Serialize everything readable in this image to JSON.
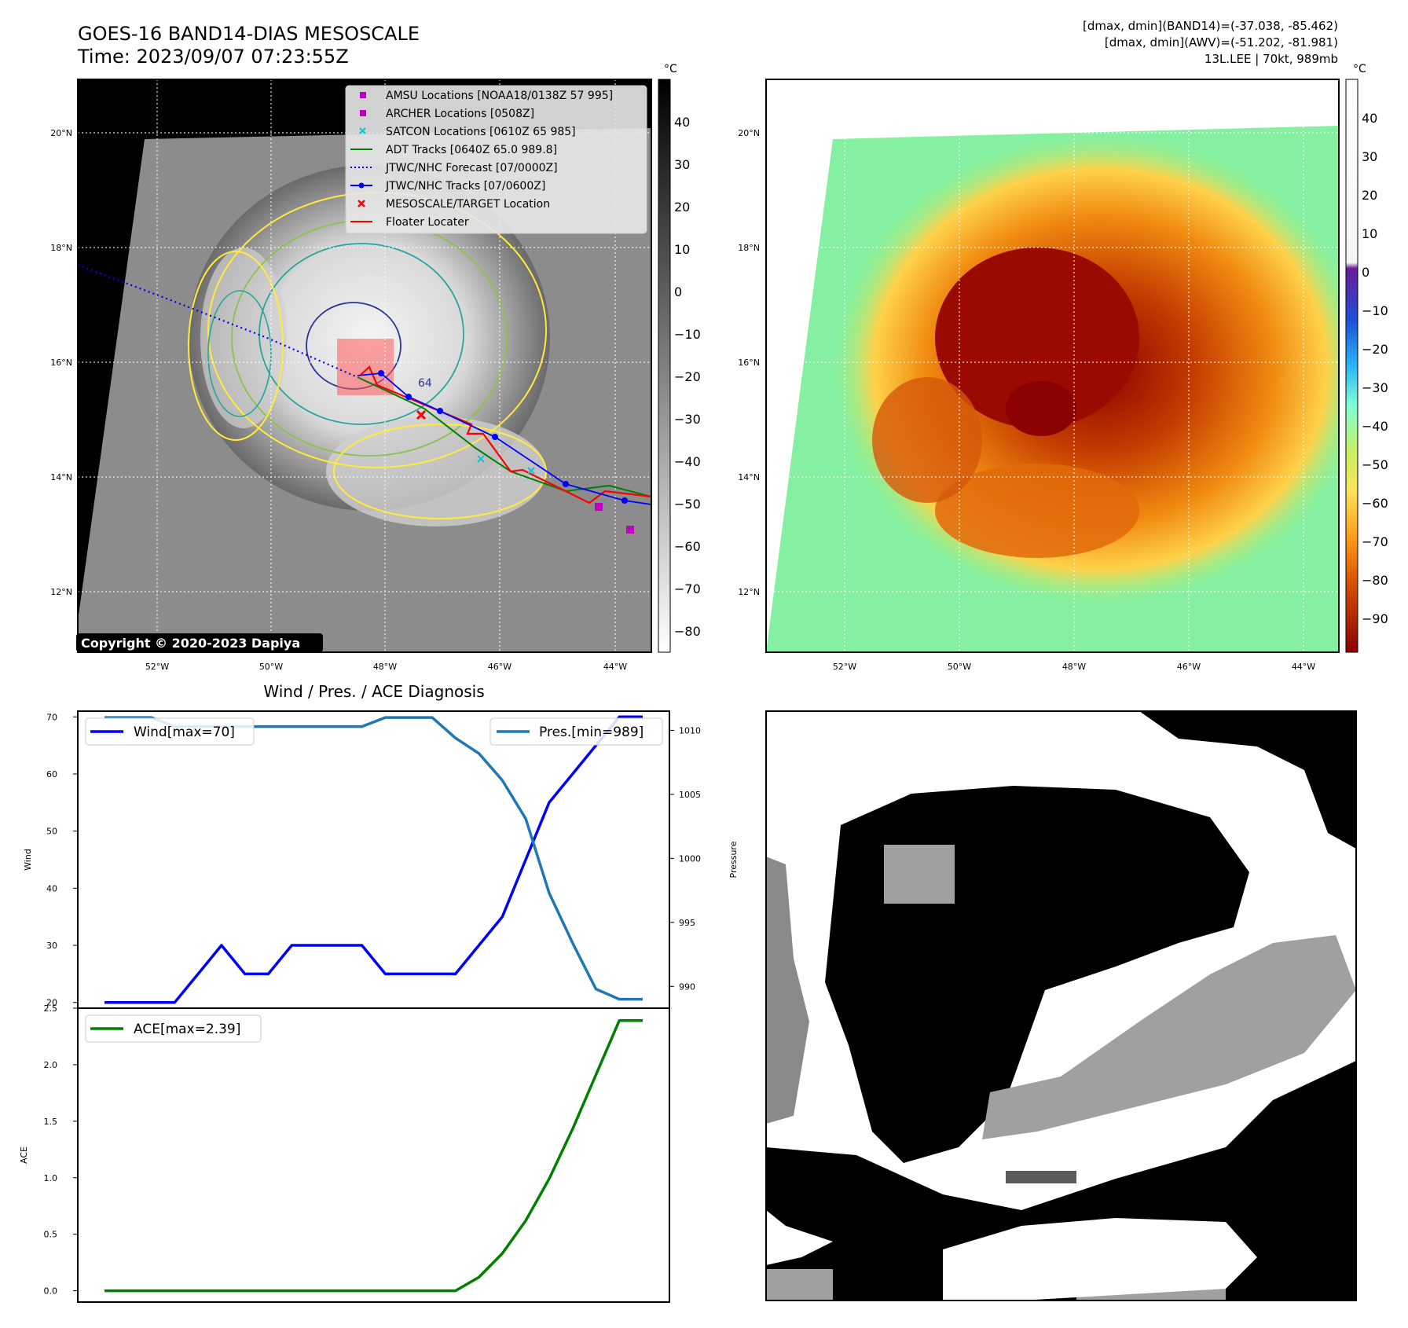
{
  "header": {
    "title_line1": "GOES-16 BAND14-DIAS MESOSCALE",
    "title_line2": "Time: 2023/09/07 07:23:55Z",
    "stats_line1": "[dmax, dmin](BAND14)=(-37.038, -85.462)",
    "stats_line2": "[dmax, dmin](AWV)=(-51.202, -81.981)",
    "stats_line3": "13L.LEE | 70kt, 989mb"
  },
  "map": {
    "lon_ticks": [
      "52°W",
      "50°W",
      "48°W",
      "46°W",
      "44°W"
    ],
    "lat_ticks": [
      "20°N",
      "18°N",
      "16°N",
      "14°N",
      "12°N"
    ],
    "copyright": "Copyright © 2020-2023 Dapiya",
    "contour_label": "64",
    "legend": [
      {
        "label": "AMSU Locations [NOAA18/0138Z 57 995]",
        "color": "#bf00bf",
        "kind": "square"
      },
      {
        "label": "ARCHER Locations [0508Z]",
        "color": "#bf00bf",
        "kind": "square"
      },
      {
        "label": "SATCON Locations [0610Z 65 985]",
        "color": "#17becf",
        "kind": "x"
      },
      {
        "label": "ADT Tracks [0640Z 65.0 989.8]",
        "color": "#008000",
        "kind": "line"
      },
      {
        "label": "JTWC/NHC Forecast [07/0000Z]",
        "color": "#0000ff",
        "kind": "dotted"
      },
      {
        "label": "JTWC/NHC Tracks [07/0600Z]",
        "color": "#0000ff",
        "kind": "dotline"
      },
      {
        "label": "MESOSCALE/TARGET Location",
        "color": "#ff0000",
        "kind": "x"
      },
      {
        "label": "Floater Locater",
        "color": "#ff0000",
        "kind": "line"
      }
    ],
    "cbar_unit": "°C",
    "cbar_gray_ticks": [
      "40",
      "30",
      "20",
      "10",
      "0",
      "−10",
      "−20",
      "−30",
      "−40",
      "−50",
      "−60",
      "−70",
      "−80"
    ],
    "cbar_color_ticks": [
      "40",
      "30",
      "20",
      "10",
      "0",
      "−10",
      "−20",
      "−30",
      "−40",
      "−50",
      "−60",
      "−70",
      "−80",
      "−90"
    ]
  },
  "diag": {
    "title": "Wind / Pres. / ACE Diagnosis",
    "wind_ylabel": "Wind",
    "pres_ylabel": "Pressure",
    "ace_ylabel": "ACE",
    "wind_legend": "Wind[max=70]",
    "pres_legend": "Pres.[min=989]",
    "ace_legend": "ACE[max=2.39]",
    "wind_ticks": [
      "20",
      "30",
      "40",
      "50",
      "60",
      "70"
    ],
    "pres_ticks": [
      "990",
      "995",
      "1000",
      "1005",
      "1010"
    ],
    "ace_ticks": [
      "0.0",
      "0.5",
      "1.0",
      "1.5",
      "2.0",
      "2.5"
    ],
    "wind_color": "#0000ff",
    "pres_color": "#1f77b4",
    "ace_color": "#008000"
  },
  "chart_data": [
    {
      "type": "line",
      "title": "Wind / Pres. / ACE Diagnosis",
      "x": [
        0,
        1,
        2,
        3,
        4,
        5,
        6,
        7,
        8,
        9,
        10,
        11,
        12,
        13,
        14,
        15,
        16,
        17,
        18,
        19,
        20,
        21,
        22,
        23
      ],
      "series": [
        {
          "name": "Wind[max=70]",
          "axis": "left",
          "values": [
            20,
            20,
            20,
            20,
            25,
            30,
            25,
            25,
            30,
            30,
            30,
            30,
            25,
            25,
            25,
            25,
            30,
            35,
            45,
            55,
            60,
            65,
            70,
            70
          ]
        },
        {
          "name": "Pres.[min=989]",
          "axis": "right",
          "values": [
            1011,
            1011,
            1011,
            1010.3,
            1010.3,
            1010.3,
            1010.3,
            1010.3,
            1010.3,
            1010.3,
            1010.3,
            1010.3,
            1011,
            1011,
            1011,
            1009.4,
            1008.2,
            1006.1,
            1003.1,
            997.3,
            993.4,
            989.8,
            989,
            989
          ]
        }
      ],
      "ylabel": "Wind",
      "ylim": [
        19,
        71
      ],
      "y2label": "Pressure",
      "y2lim": [
        988.3,
        1011.5
      ]
    },
    {
      "type": "line",
      "x": [
        0,
        1,
        2,
        3,
        4,
        5,
        6,
        7,
        8,
        9,
        10,
        11,
        12,
        13,
        14,
        15,
        16,
        17,
        18,
        19,
        20,
        21,
        22,
        23
      ],
      "series": [
        {
          "name": "ACE[max=2.39]",
          "values": [
            0,
            0,
            0,
            0,
            0,
            0,
            0,
            0,
            0,
            0,
            0,
            0,
            0,
            0,
            0,
            0,
            0.12,
            0.33,
            0.62,
            0.99,
            1.43,
            1.91,
            2.39,
            2.39
          ]
        }
      ],
      "ylabel": "ACE",
      "ylim": [
        -0.1,
        2.5
      ]
    }
  ]
}
